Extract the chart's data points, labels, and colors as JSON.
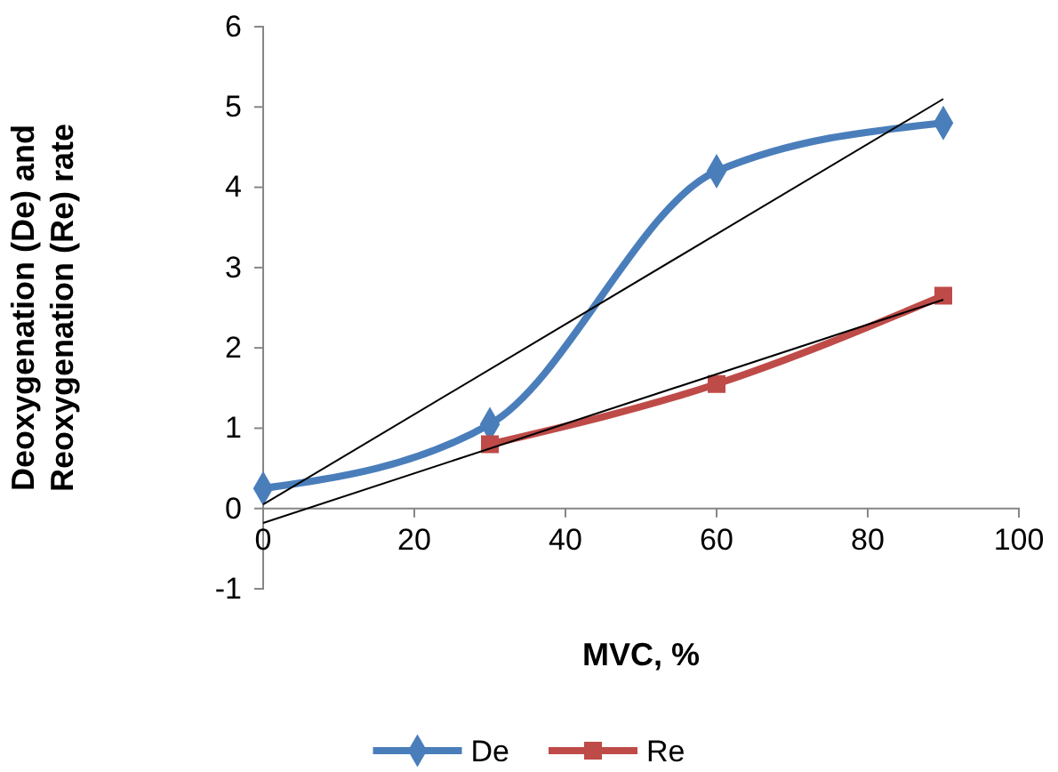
{
  "chart_data": {
    "type": "line",
    "xlabel": "MVC, %",
    "ylabel": "Deoxygenation (De) and Reoxygenation (Re) rate",
    "x": [
      0,
      30,
      60,
      90
    ],
    "series": [
      {
        "name": "De",
        "color": "#4a7ebb",
        "marker": "diamond",
        "values": [
          0.25,
          1.05,
          4.2,
          4.8
        ]
      },
      {
        "name": "Re",
        "color": "#be4b48",
        "marker": "square",
        "x": [
          30,
          60,
          90
        ],
        "values": [
          0.8,
          1.55,
          2.65
        ]
      },
      {
        "color": "#000000",
        "marker": "none",
        "x": [
          0,
          90
        ],
        "values": [
          0.05,
          5.1
        ]
      },
      {
        "color": "#000000",
        "marker": "none",
        "x": [
          0,
          90
        ],
        "values": [
          -0.18,
          2.6
        ]
      }
    ],
    "xlim": [
      0,
      100
    ],
    "xticks": [
      0,
      20,
      40,
      60,
      80,
      100
    ],
    "ylim": [
      -1,
      6
    ],
    "yticks": [
      -1,
      0,
      1,
      2,
      3,
      4,
      5,
      6
    ],
    "grid": false,
    "legend": "bottom"
  }
}
